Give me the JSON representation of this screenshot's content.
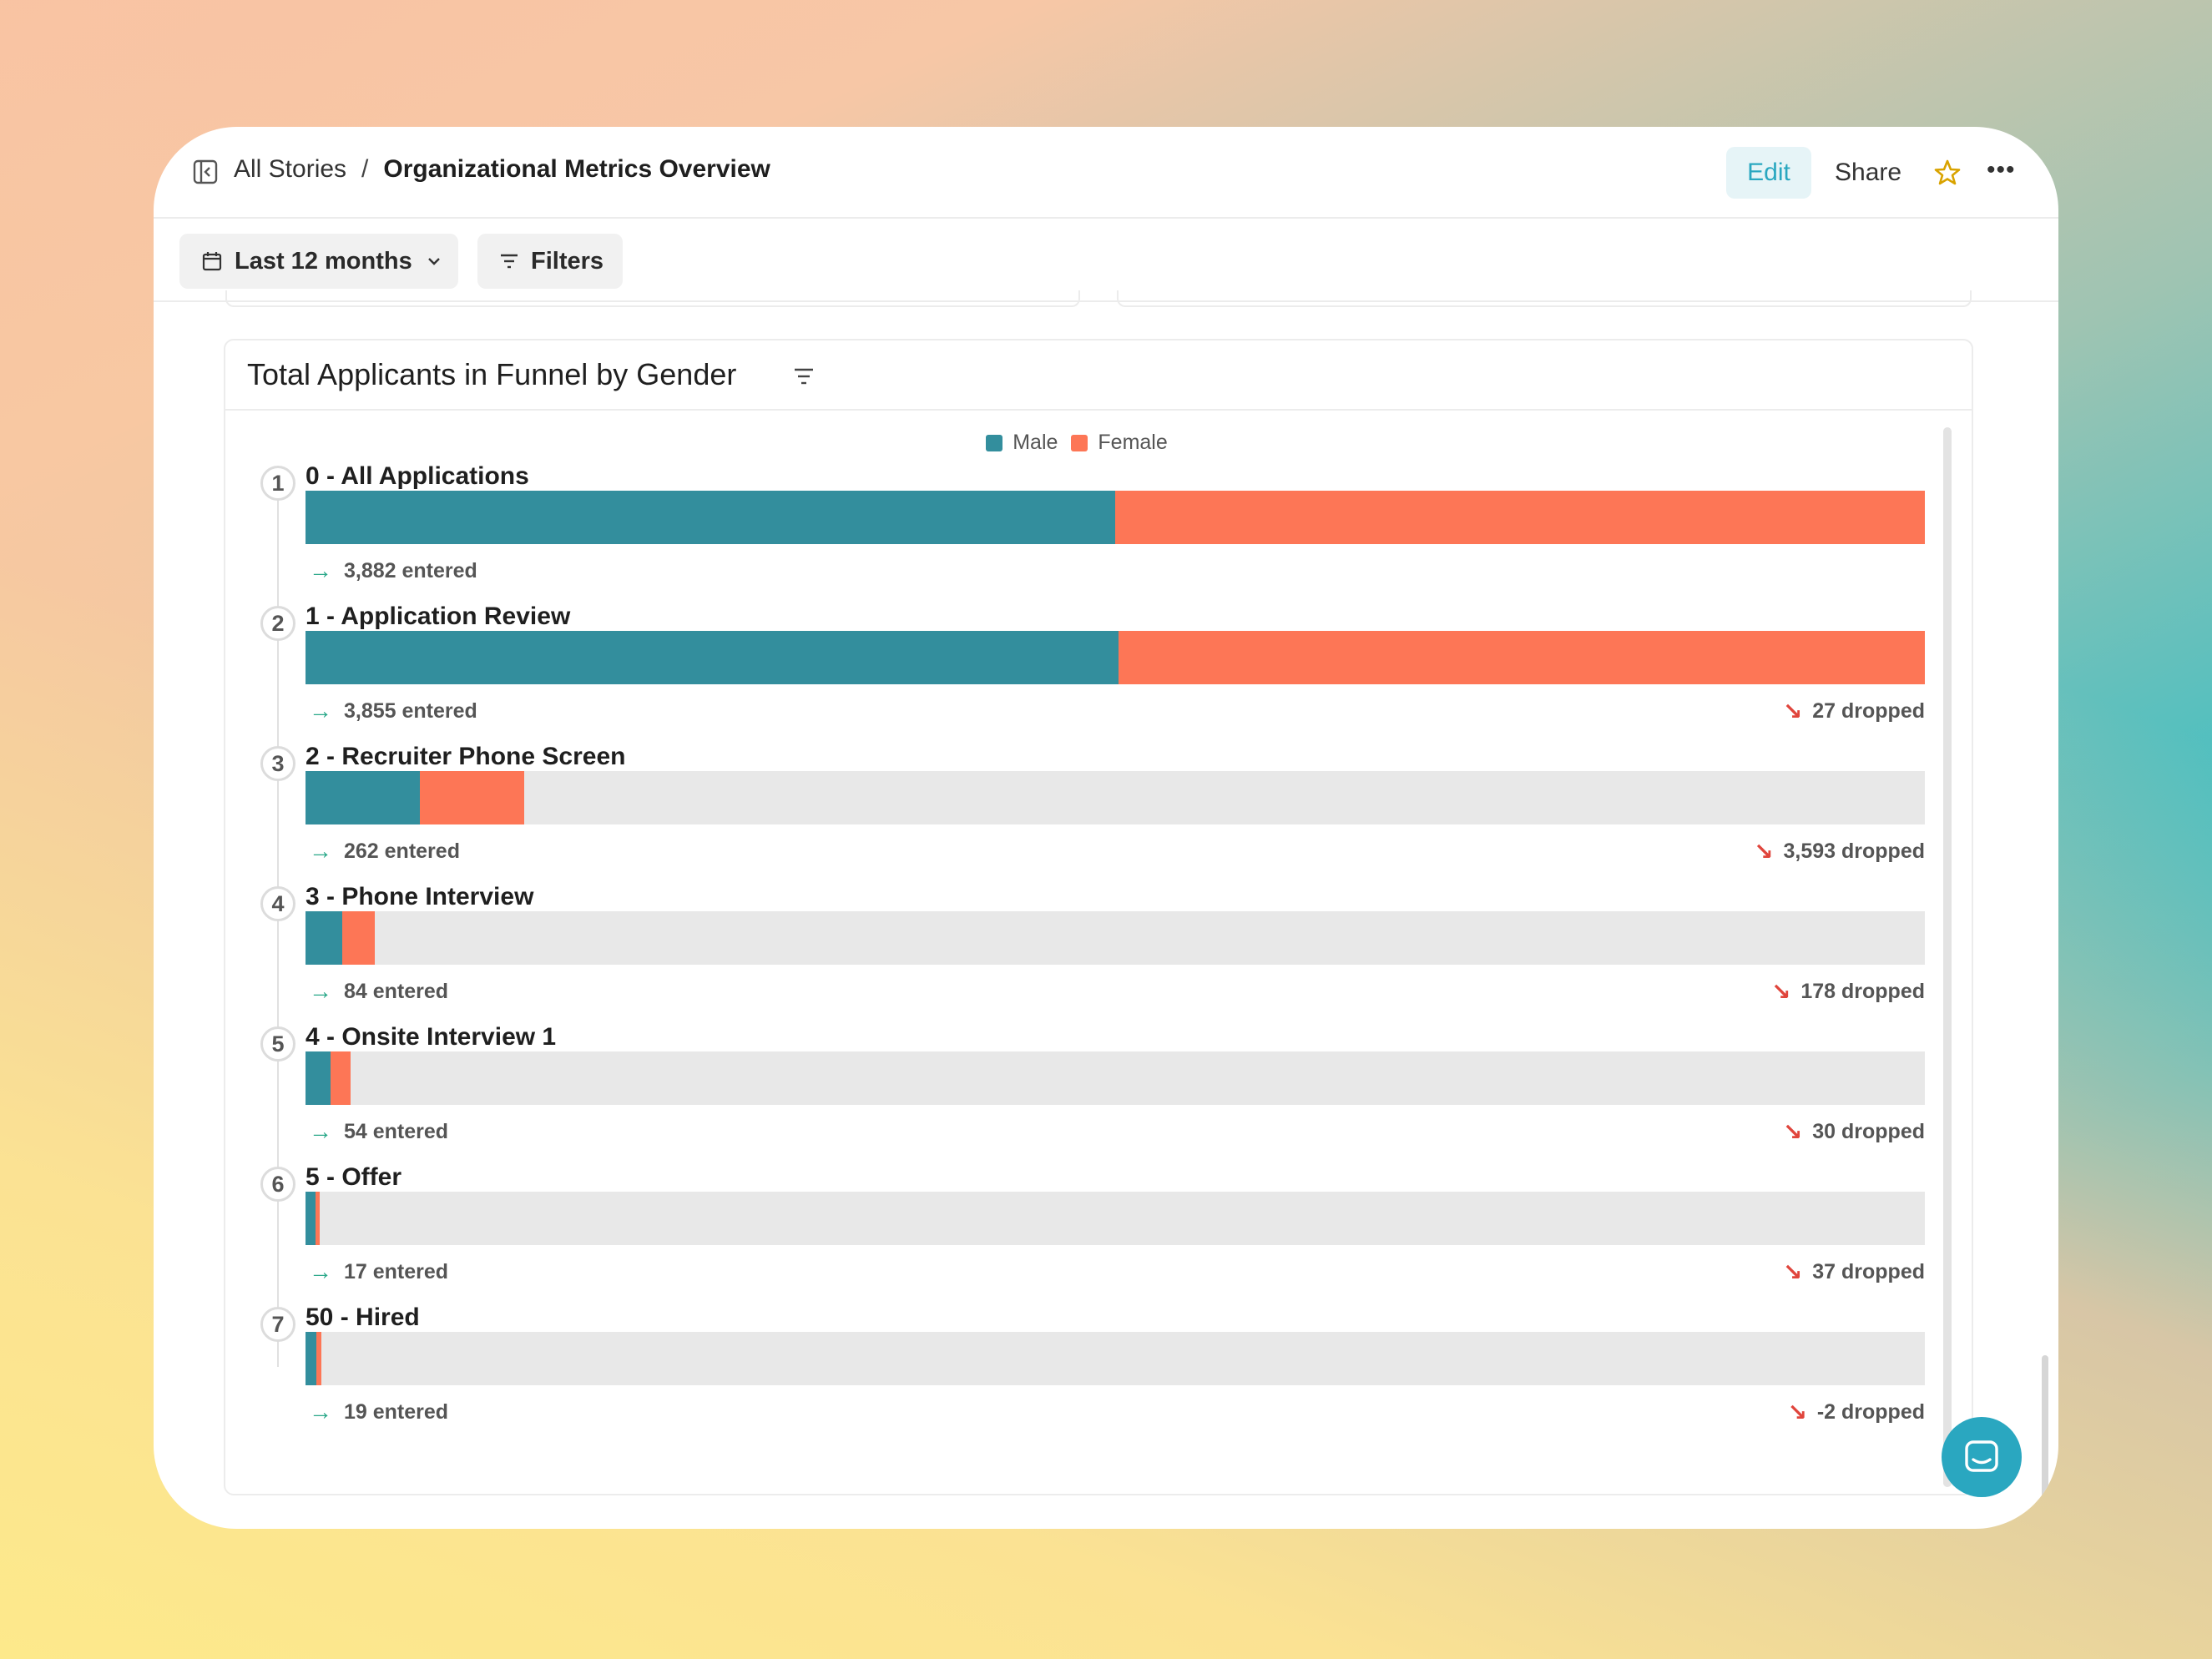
{
  "header": {
    "breadcrumb_root": "All Stories",
    "breadcrumb_sep": "/",
    "breadcrumb_current": "Organizational Metrics Overview",
    "edit_label": "Edit",
    "share_label": "Share"
  },
  "toolbar": {
    "date_range_label": "Last 12 months",
    "filters_label": "Filters"
  },
  "card": {
    "title": "Total Applicants in Funnel by Gender"
  },
  "colors": {
    "male": "#338e9d",
    "female": "#fd7656",
    "accent": "#2aa7c0"
  },
  "chart_data": {
    "type": "bar",
    "title": "Total Applicants in Funnel by Gender",
    "legend": [
      "Male",
      "Female"
    ],
    "steps": [
      {
        "index": "1",
        "label": "0 - All Applications",
        "male_fraction": 0.5,
        "female_fraction": 0.5,
        "entered": "3,882 entered",
        "dropped": ""
      },
      {
        "index": "2",
        "label": "1 - Application Review",
        "male_fraction": 0.502,
        "female_fraction": 0.498,
        "entered": "3,855 entered",
        "dropped": "27 dropped"
      },
      {
        "index": "3",
        "label": "2 - Recruiter Phone Screen",
        "male_fraction": 0.0705,
        "female_fraction": 0.0645,
        "entered": "262 entered",
        "dropped": "3,593 dropped"
      },
      {
        "index": "4",
        "label": "3 - Phone Interview",
        "male_fraction": 0.0225,
        "female_fraction": 0.0205,
        "entered": "84 entered",
        "dropped": "178 dropped"
      },
      {
        "index": "5",
        "label": "4 - Onsite Interview 1",
        "male_fraction": 0.0155,
        "female_fraction": 0.0125,
        "entered": "54 entered",
        "dropped": "30 dropped"
      },
      {
        "index": "6",
        "label": "5 - Offer",
        "male_fraction": 0.006,
        "female_fraction": 0.003,
        "entered": "17 entered",
        "dropped": "37 dropped"
      },
      {
        "index": "7",
        "label": "50 - Hired",
        "male_fraction": 0.0065,
        "female_fraction": 0.0035,
        "entered": "19 entered",
        "dropped": "-2 dropped"
      }
    ]
  }
}
